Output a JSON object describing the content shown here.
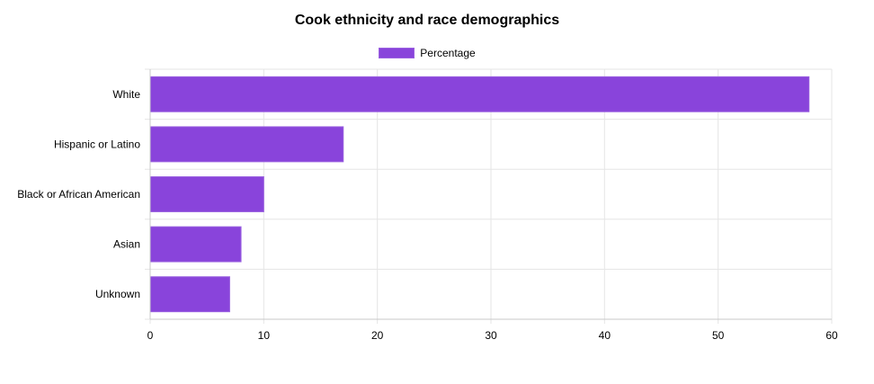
{
  "chart_data": {
    "type": "bar",
    "orientation": "horizontal",
    "title": "Cook ethnicity and race demographics",
    "categories": [
      "White",
      "Hispanic or Latino",
      "Black or African American",
      "Asian",
      "Unknown"
    ],
    "series": [
      {
        "name": "Percentage",
        "values": [
          58,
          17,
          10,
          8,
          7
        ]
      }
    ],
    "xlim": [
      0,
      60
    ],
    "x_ticks": [
      "0",
      "10",
      "20",
      "30",
      "40",
      "50",
      "60"
    ],
    "grid": true,
    "legend_position": "top",
    "bar_color": "#8944db",
    "bar_border_color": "#9b62e0"
  }
}
